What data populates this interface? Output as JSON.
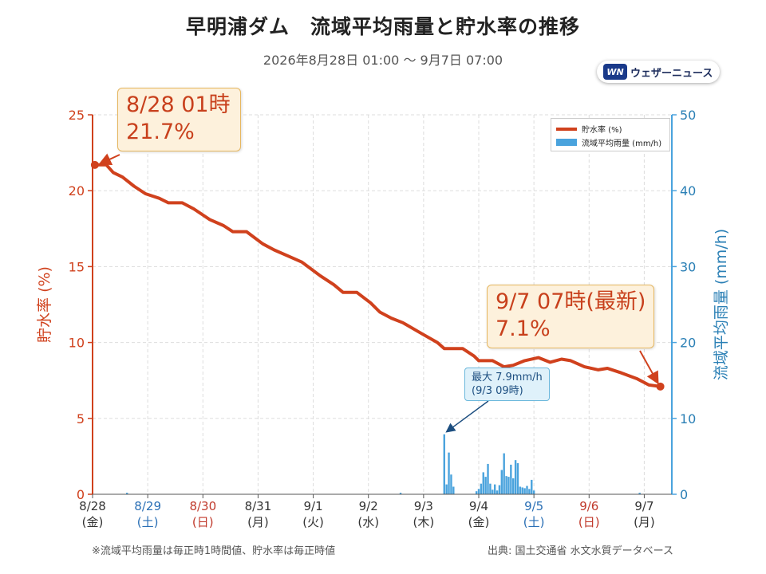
{
  "header": {
    "title": "早明浦ダム　流域平均雨量と貯水率の推移",
    "subtitle": "2026年8月28日 01:00 〜 9月7日 07:00",
    "logo_mark": "WN",
    "logo_text": "ウェザーニュース"
  },
  "footer": {
    "note": "※流域平均雨量は毎正時1時間値、貯水率は毎正時値",
    "source": "出典: 国土交通省 水文水質データベース"
  },
  "annotations": {
    "start_line1": "8/28 01時",
    "start_line2": "21.7%",
    "end_line1": "9/7 07時(最新)",
    "end_line2": "7.1%",
    "max_line1": "最大 7.9mm/h",
    "max_line2": "(9/3 09時)"
  },
  "colors": {
    "storage": "#d0411d",
    "rain": "#4aa3dd",
    "saturday": "#2a6fb5",
    "sunday": "#c0392b",
    "weekday": "#333333"
  },
  "chart_data": {
    "type": "line",
    "xlabel": "",
    "x_ticks": [
      {
        "date": "8/28",
        "dow": "(金)",
        "day": "weekday"
      },
      {
        "date": "8/29",
        "dow": "(土)",
        "day": "saturday"
      },
      {
        "date": "8/30",
        "dow": "(日)",
        "day": "sunday"
      },
      {
        "date": "8/31",
        "dow": "(月)",
        "day": "weekday"
      },
      {
        "date": "9/1",
        "dow": "(火)",
        "day": "weekday"
      },
      {
        "date": "9/2",
        "dow": "(水)",
        "day": "weekday"
      },
      {
        "date": "9/3",
        "dow": "(木)",
        "day": "weekday"
      },
      {
        "date": "9/4",
        "dow": "(金)",
        "day": "weekday"
      },
      {
        "date": "9/5",
        "dow": "(土)",
        "day": "saturday"
      },
      {
        "date": "9/6",
        "dow": "(日)",
        "day": "sunday"
      },
      {
        "date": "9/7",
        "dow": "(月)",
        "day": "weekday"
      }
    ],
    "y_left": {
      "label": "貯水率 (%)",
      "range": [
        0,
        25
      ],
      "ticks": [
        "0",
        "5",
        "10",
        "15",
        "20",
        "25"
      ]
    },
    "y_right": {
      "label": "流域平均雨量 (mm/h)",
      "range": [
        0,
        50
      ],
      "ticks": [
        "0",
        "10",
        "20",
        "30",
        "40",
        "50"
      ]
    },
    "grid": true,
    "legend": {
      "position": "top-right",
      "entries": [
        "貯水率 (%)",
        "流域平均雨量 (mm/h)"
      ]
    },
    "series": [
      {
        "name": "貯水率 (%)",
        "type": "line",
        "axis": "left",
        "x_unit": "datetime",
        "points": [
          [
            "8/28 01:00",
            21.7
          ],
          [
            "8/28 06:00",
            21.7
          ],
          [
            "8/28 09:00",
            21.2
          ],
          [
            "8/28 13:00",
            20.9
          ],
          [
            "8/28 18:00",
            20.3
          ],
          [
            "8/28 23:00",
            19.8
          ],
          [
            "8/29 05:00",
            19.5
          ],
          [
            "8/29 09:00",
            19.2
          ],
          [
            "8/29 15:00",
            19.2
          ],
          [
            "8/29 20:00",
            18.8
          ],
          [
            "8/30 03:00",
            18.1
          ],
          [
            "8/30 09:00",
            17.7
          ],
          [
            "8/30 13:00",
            17.3
          ],
          [
            "8/30 19:00",
            17.3
          ],
          [
            "8/31 02:00",
            16.5
          ],
          [
            "8/31 07:00",
            16.1
          ],
          [
            "8/31 13:00",
            15.7
          ],
          [
            "8/31 19:00",
            15.3
          ],
          [
            "9/1 03:00",
            14.4
          ],
          [
            "9/1 09:00",
            13.8
          ],
          [
            "9/1 13:00",
            13.3
          ],
          [
            "9/1 19:00",
            13.3
          ],
          [
            "9/2 01:00",
            12.6
          ],
          [
            "9/2 05:00",
            12.0
          ],
          [
            "9/2 10:00",
            11.6
          ],
          [
            "9/2 15:00",
            11.3
          ],
          [
            "9/2 23:00",
            10.6
          ],
          [
            "9/3 06:00",
            10.0
          ],
          [
            "9/3 09:00",
            9.6
          ],
          [
            "9/3 17:00",
            9.6
          ],
          [
            "9/3 22:00",
            9.1
          ],
          [
            "9/4 00:00",
            8.8
          ],
          [
            "9/4 06:00",
            8.8
          ],
          [
            "9/4 11:00",
            8.4
          ],
          [
            "9/4 15:00",
            8.5
          ],
          [
            "9/4 20:00",
            8.8
          ],
          [
            "9/5 02:00",
            9.0
          ],
          [
            "9/5 07:00",
            8.7
          ],
          [
            "9/5 12:00",
            8.9
          ],
          [
            "9/5 16:00",
            8.8
          ],
          [
            "9/5 22:00",
            8.4
          ],
          [
            "9/6 04:00",
            8.2
          ],
          [
            "9/6 08:00",
            8.3
          ],
          [
            "9/6 14:00",
            8.0
          ],
          [
            "9/6 21:00",
            7.6
          ],
          [
            "9/7 02:00",
            7.2
          ],
          [
            "9/7 07:00",
            7.1
          ]
        ]
      },
      {
        "name": "流域平均雨量 (mm/h)",
        "type": "bar",
        "axis": "right",
        "x_unit": "datetime",
        "points": [
          [
            "8/28 15:00",
            0.2
          ],
          [
            "9/2 14:00",
            0.2
          ],
          [
            "9/3 09:00",
            7.9
          ],
          [
            "9/3 10:00",
            1.3
          ],
          [
            "9/3 11:00",
            5.5
          ],
          [
            "9/3 12:00",
            2.6
          ],
          [
            "9/3 13:00",
            1.0
          ],
          [
            "9/3 23:00",
            0.4
          ],
          [
            "9/4 00:00",
            0.7
          ],
          [
            "9/4 01:00",
            1.4
          ],
          [
            "9/4 02:00",
            2.9
          ],
          [
            "9/4 03:00",
            2.3
          ],
          [
            "9/4 04:00",
            4.0
          ],
          [
            "9/4 05:00",
            1.4
          ],
          [
            "9/4 06:00",
            0.6
          ],
          [
            "9/4 07:00",
            1.3
          ],
          [
            "9/4 08:00",
            0.5
          ],
          [
            "9/4 09:00",
            1.2
          ],
          [
            "9/4 10:00",
            3.2
          ],
          [
            "9/4 11:00",
            5.4
          ],
          [
            "9/4 12:00",
            2.4
          ],
          [
            "9/4 13:00",
            2.3
          ],
          [
            "9/4 14:00",
            3.9
          ],
          [
            "9/4 15:00",
            2.1
          ],
          [
            "9/4 16:00",
            4.5
          ],
          [
            "9/4 17:00",
            4.1
          ],
          [
            "9/4 18:00",
            1.0
          ],
          [
            "9/4 19:00",
            0.9
          ],
          [
            "9/4 20:00",
            0.8
          ],
          [
            "9/4 21:00",
            1.1
          ],
          [
            "9/4 22:00",
            0.7
          ],
          [
            "9/4 23:00",
            1.9
          ],
          [
            "9/5 00:00",
            0.5
          ],
          [
            "9/6 22:00",
            0.2
          ]
        ]
      }
    ]
  }
}
